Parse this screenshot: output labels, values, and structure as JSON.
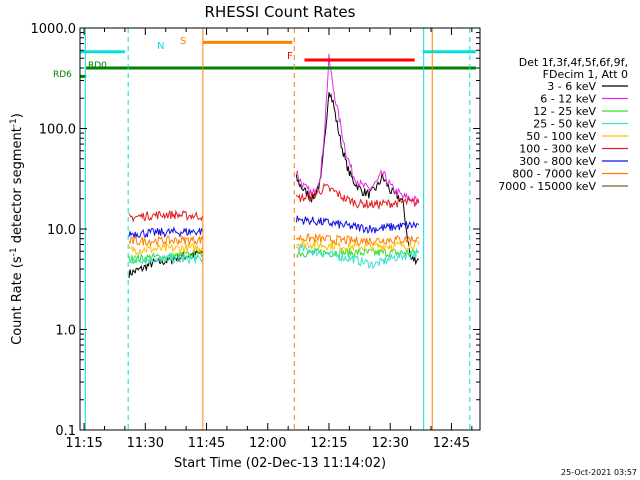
{
  "chart_data": {
    "type": "line",
    "title": "RHESSI Count Rates",
    "xlabel": "Start Time (02-Dec-13 11:14:02)",
    "ylabel_main": "Count Rate (s",
    "ylabel_sup1": "-1",
    "ylabel_mid": " detector segment",
    "ylabel_sup2": "-1",
    "ylabel_end": ")",
    "y_scale": "log",
    "x_range": [
      "11:14",
      "12:52"
    ],
    "ylim": [
      0.1,
      1000.0
    ],
    "x_ticks": [
      {
        "label": "11:15",
        "minute": 75
      },
      {
        "label": "11:30",
        "minute": 90
      },
      {
        "label": "11:45",
        "minute": 105
      },
      {
        "label": "12:00",
        "minute": 120
      },
      {
        "label": "12:15",
        "minute": 135
      },
      {
        "label": "12:30",
        "minute": 150
      },
      {
        "label": "12:45",
        "minute": 165
      }
    ],
    "y_ticks": [
      {
        "label": "0.1",
        "value": 0.1
      },
      {
        "label": "1.0",
        "value": 1
      },
      {
        "label": "10.0",
        "value": 10
      },
      {
        "label": "100.0",
        "value": 100
      },
      {
        "label": "1000.0",
        "value": 1000
      }
    ],
    "legend": {
      "placement": "right",
      "header": [
        "Det 1f,3f,4f,5f,6f,9f,",
        "FDecim 1, Att 0"
      ],
      "entries": [
        {
          "label": "3 - 6 keV",
          "color": "#000000"
        },
        {
          "label": "6 - 12 keV",
          "color": "#e030e0"
        },
        {
          "label": "12 - 25 keV",
          "color": "#30e030"
        },
        {
          "label": "25 - 50 keV",
          "color": "#40e0d0"
        },
        {
          "label": "50 - 100 keV",
          "color": "#ffc000"
        },
        {
          "label": "100 - 300 keV",
          "color": "#e02020"
        },
        {
          "label": "300 - 800 keV",
          "color": "#1010e0"
        },
        {
          "label": "800 - 7000 keV",
          "color": "#ff8000"
        },
        {
          "label": "7000 - 15000 keV",
          "color": "#806020"
        }
      ]
    },
    "series": [
      {
        "label": "3 - 6 keV",
        "color": "#000000",
        "segments": [
          {
            "x": [
              86,
              89,
              92,
              95,
              98,
              101,
              104
            ],
            "y": [
              3.6,
              4.0,
              4.6,
              4.8,
              5.2,
              5.5,
              5.8
            ]
          },
          {
            "x": [
              127,
              128,
              129,
              131,
              133,
              134,
              135,
              136,
              137,
              138,
              139,
              140,
              141,
              143,
              145,
              147,
              148,
              149,
              150,
              151,
              152,
              153,
              155,
              157
            ],
            "y": [
              32,
              27,
              24,
              20,
              30,
              80,
              250,
              180,
              110,
              70,
              48,
              36,
              30,
              24,
              22,
              27,
              33,
              29,
              24,
              22,
              21,
              19,
              5.0,
              5.0
            ]
          }
        ]
      },
      {
        "label": "6 - 12 keV",
        "color": "#e030e0",
        "segments": [
          {
            "x": [
              127,
              128,
              129,
              131,
              133,
              134,
              135,
              136,
              137,
              138,
              139,
              140,
              141,
              143,
              145,
              147,
              148,
              149,
              150,
              151,
              152,
              153,
              155,
              157
            ],
            "y": [
              38,
              30,
              26,
              22,
              35,
              110,
              500,
              260,
              160,
              100,
              62,
              45,
              34,
              27,
              25,
              30,
              36,
              32,
              27,
              24,
              23,
              21,
              20,
              19
            ]
          }
        ]
      },
      {
        "label": "12 - 25 keV",
        "color": "#30e030",
        "segments": [
          {
            "x": [
              86,
              104
            ],
            "y": [
              5.0,
              5.6
            ]
          },
          {
            "x": [
              127,
              157
            ],
            "y": [
              5.8,
              5.8
            ]
          }
        ]
      },
      {
        "label": "25 - 50 keV",
        "color": "#40e0d0",
        "segments": [
          {
            "x": [
              86,
              104
            ],
            "y": [
              5.0,
              5.0
            ]
          },
          {
            "x": [
              127,
              135,
              141,
              146,
              151,
              157
            ],
            "y": [
              6.5,
              5.6,
              5.0,
              4.4,
              5.2,
              5.8
            ]
          }
        ]
      },
      {
        "label": "50 - 100 keV",
        "color": "#ffc000",
        "segments": [
          {
            "x": [
              86,
              104
            ],
            "y": [
              6.2,
              6.5
            ]
          },
          {
            "x": [
              127,
              142,
              157
            ],
            "y": [
              7.2,
              6.6,
              7.0
            ]
          }
        ]
      },
      {
        "label": "100 - 300 keV",
        "color": "#e02020",
        "segments": [
          {
            "x": [
              86,
              90,
              95,
              100,
              104
            ],
            "y": [
              13.0,
              13.5,
              14.0,
              13.6,
              13.5
            ]
          },
          {
            "x": [
              127,
              131,
              134,
              136,
              139,
              142,
              146,
              150,
              154,
              157
            ],
            "y": [
              20,
              21,
              26,
              24,
              20,
              18,
              17.5,
              18,
              18.5,
              18
            ]
          }
        ]
      },
      {
        "label": "300 - 800 keV",
        "color": "#1010e0",
        "segments": [
          {
            "x": [
              86,
              104
            ],
            "y": [
              9.0,
              9.5
            ]
          },
          {
            "x": [
              127,
              135,
              141,
              146,
              151,
              157
            ],
            "y": [
              12.5,
              11.5,
              10.5,
              10.0,
              10.5,
              11.0
            ]
          }
        ]
      },
      {
        "label": "800 - 7000 keV",
        "color": "#ff8000",
        "segments": [
          {
            "x": [
              86,
              104
            ],
            "y": [
              7.5,
              7.8
            ]
          },
          {
            "x": [
              127,
              142,
              157
            ],
            "y": [
              8.2,
              7.6,
              8.0
            ]
          }
        ]
      },
      {
        "label": "7000 - 15000 keV",
        "color": "#806020",
        "segments": []
      }
    ],
    "attenuator_state": [
      {
        "label": "RD6",
        "color": "#008000",
        "value": 330,
        "x": [
          74,
          75.5
        ]
      },
      {
        "label": "RD0",
        "color": "#008000",
        "value": 400,
        "x": [
          75.5,
          171
        ]
      }
    ],
    "flags": [
      {
        "label": "N",
        "color": "#00e0e0",
        "value": 580,
        "x": [
          74,
          85
        ]
      },
      {
        "label": "",
        "color": "#00e0e0",
        "value": 580,
        "x": [
          158,
          171
        ]
      },
      {
        "label": "S",
        "color": "#ff8000",
        "value": 720,
        "x": [
          104,
          126
        ]
      },
      {
        "label": "F",
        "color": "#ff0000",
        "value": 480,
        "x": [
          129,
          156
        ]
      }
    ],
    "vlines": [
      {
        "color": "#00e0e0",
        "style": "solid",
        "minute": 75.3
      },
      {
        "color": "#00e0e0",
        "style": "dashed",
        "minute": 85.8
      },
      {
        "color": "#ff8000",
        "style": "solid",
        "minute": 104.1
      },
      {
        "color": "#ff8000",
        "style": "dashed",
        "minute": 126.5
      },
      {
        "color": "#00e0e0",
        "style": "solid",
        "minute": 158.2
      },
      {
        "color": "#ff8000",
        "style": "solid",
        "minute": 160.3
      },
      {
        "color": "#00e0e0",
        "style": "dashed",
        "minute": 169.5
      }
    ]
  },
  "timestamp": "25-Oct-2021 03:57"
}
